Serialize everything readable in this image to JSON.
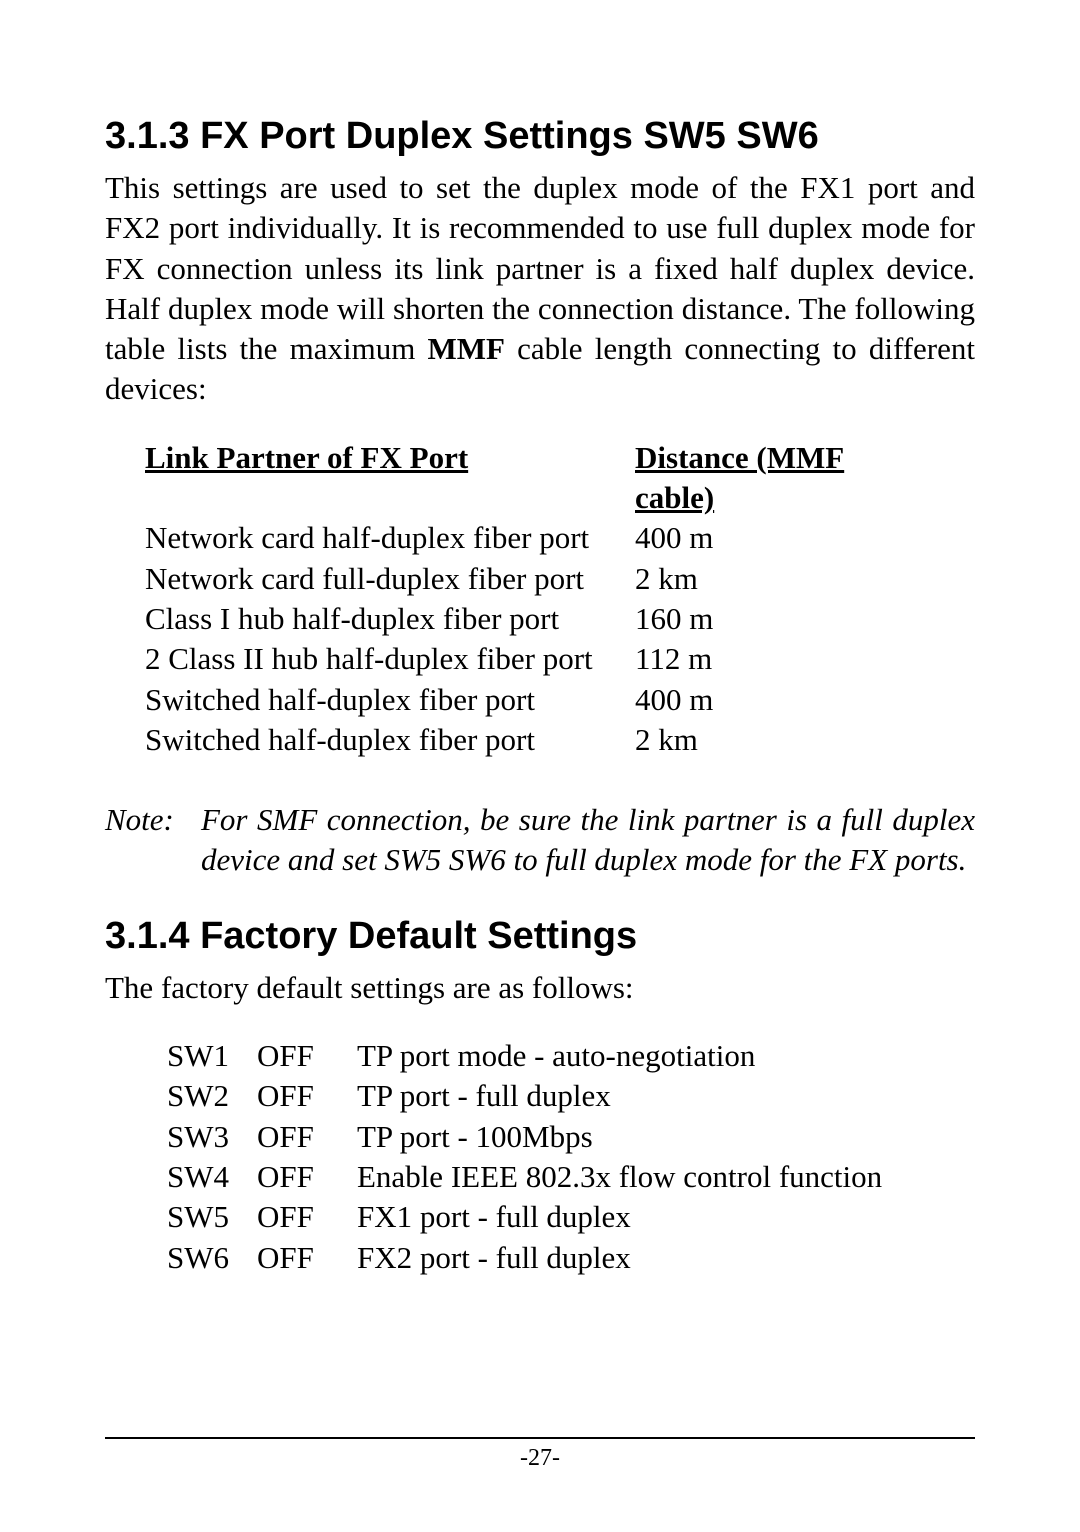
{
  "section1": {
    "heading": "3.1.3 FX Port Duplex Settings SW5 SW6",
    "para_pre": "This settings are used to set the duplex mode of the FX1 port and FX2 port individually. It is recommended to use full duplex mode for FX connection unless its link partner is a fixed half duplex device. Half duplex mode will shorten the connection distance. The following table lists the maximum ",
    "para_bold": "MMF",
    "para_post": " cable length connecting to different devices:",
    "table": {
      "header": {
        "col1": "Link Partner of FX Port",
        "col2": "Distance (MMF cable)"
      },
      "rows": [
        {
          "col1": "Network card half-duplex fiber port",
          "col2": "400 m"
        },
        {
          "col1": "Network card full-duplex fiber port",
          "col2": "2 km"
        },
        {
          "col1": "Class I hub half-duplex fiber port",
          "col2": "160 m"
        },
        {
          "col1": "2 Class II hub half-duplex fiber port",
          "col2": "112 m"
        },
        {
          "col1": "Switched half-duplex fiber port",
          "col2": "400 m"
        },
        {
          "col1": "Switched half-duplex fiber port",
          "col2": "2 km"
        }
      ]
    },
    "note_label": "Note:",
    "note_body": "For SMF connection, be sure the link partner is a full duplex device and set SW5 SW6 to full duplex mode for the FX ports."
  },
  "section2": {
    "heading": "3.1.4 Factory Default Settings",
    "intro": "The factory default settings are as follows:",
    "rows": [
      {
        "sw": "SW1",
        "state": "OFF",
        "desc": "TP port mode - auto-negotiation"
      },
      {
        "sw": "SW2",
        "state": "OFF",
        "desc": "TP port - full duplex"
      },
      {
        "sw": "SW3",
        "state": "OFF",
        "desc": "TP port - 100Mbps"
      },
      {
        "sw": "SW4",
        "state": "OFF",
        "desc": "Enable IEEE 802.3x flow control function"
      },
      {
        "sw": "SW5",
        "state": "OFF",
        "desc": "FX1 port - full duplex"
      },
      {
        "sw": "SW6",
        "state": "OFF",
        "desc": "FX2 port - full duplex"
      }
    ]
  },
  "footer": {
    "page_number": "-27-"
  }
}
